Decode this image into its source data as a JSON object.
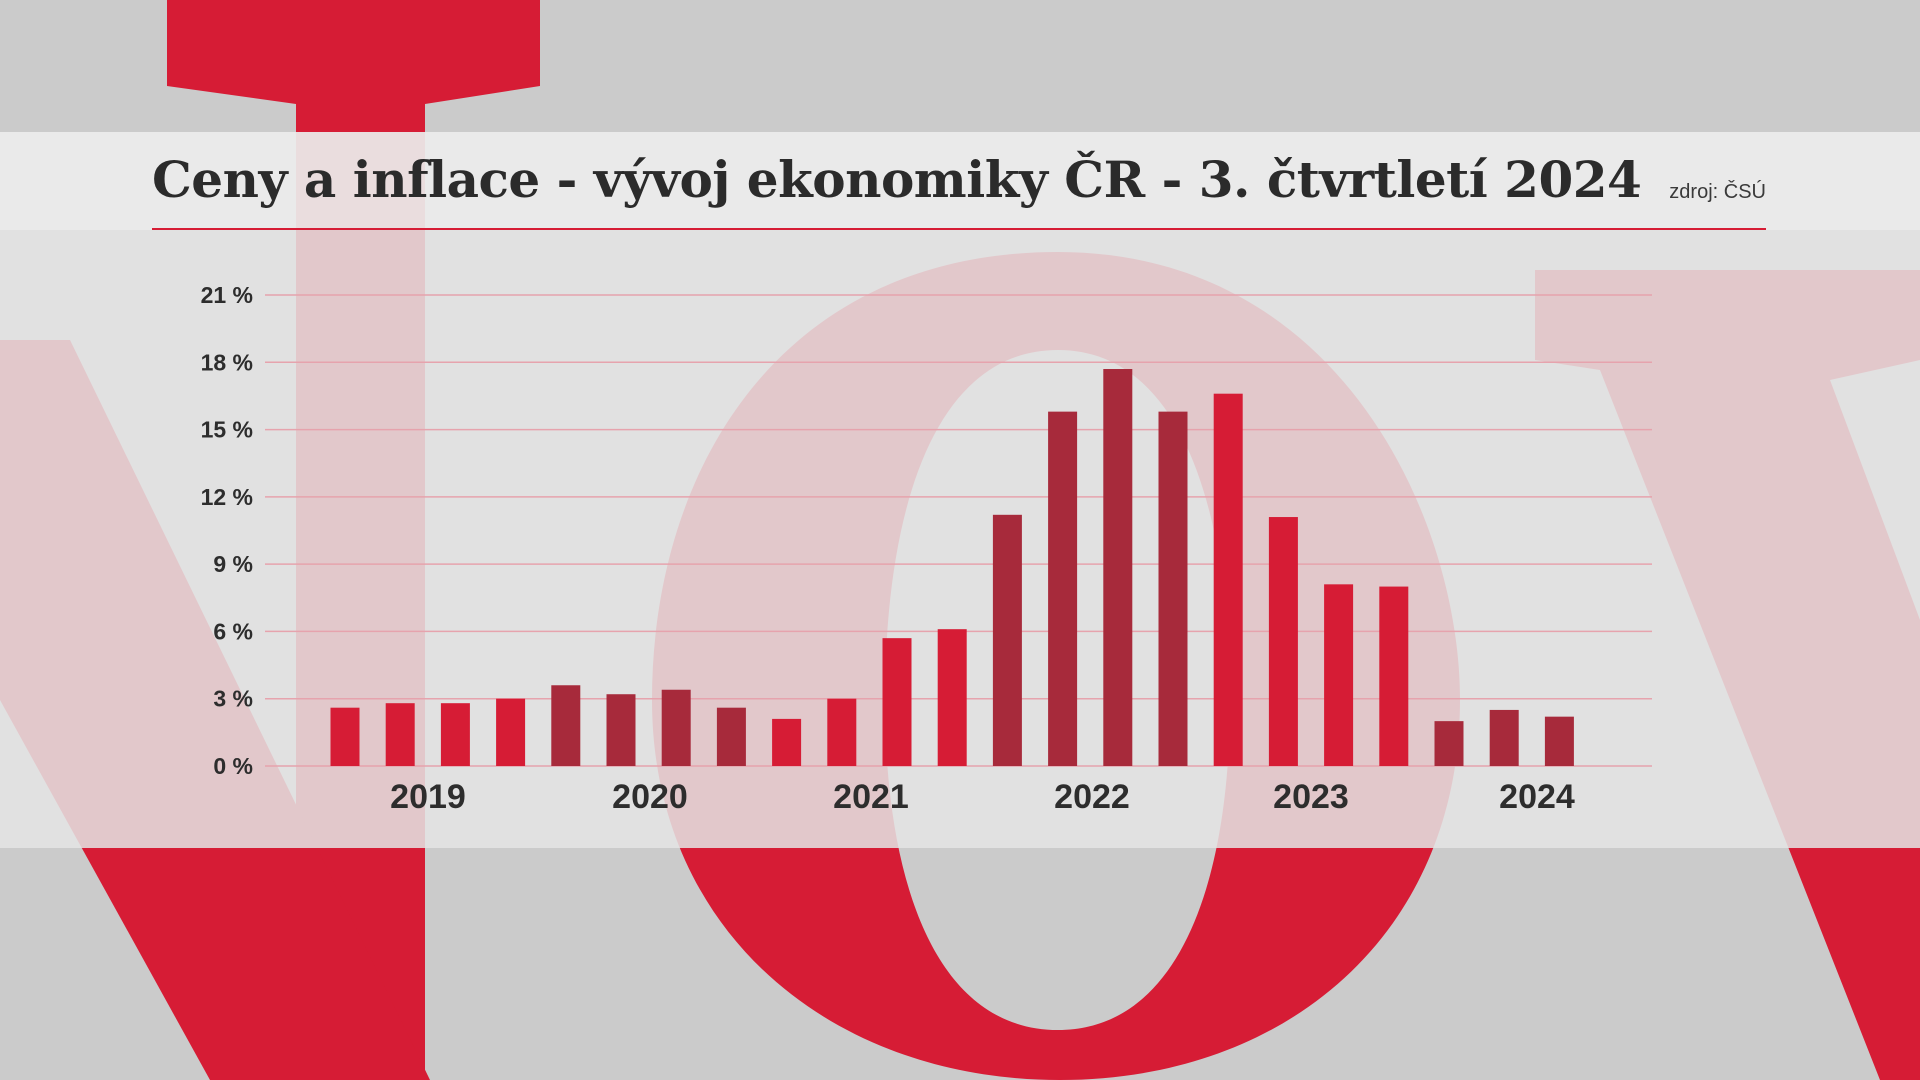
{
  "colors": {
    "accent": "#d61c35",
    "dark_bar": "#a72a3b",
    "light_bar": "#d61c35",
    "gridline": "#e6a3ad",
    "background": "#cbcbcb"
  },
  "header": {
    "title": "Ceny a inflace - vývoj ekonomiky ČR - 3. čtvrtletí 2024",
    "source": "zdroj: ČSÚ"
  },
  "chart_data": {
    "type": "bar",
    "title": "Ceny a inflace - vývoj ekonomiky ČR - 3. čtvrtletí 2024",
    "xlabel": "",
    "ylabel": "",
    "ylim": [
      0,
      21
    ],
    "yticks": [
      0,
      3,
      6,
      9,
      12,
      15,
      18,
      21
    ],
    "ytick_labels": [
      "0 %",
      "3 %",
      "6 %",
      "9 %",
      "12 %",
      "15 %",
      "18 %",
      "21 %"
    ],
    "year_labels": [
      "2019",
      "2020",
      "2021",
      "2022",
      "2023",
      "2024"
    ],
    "grid": true,
    "legend": "none",
    "values": [
      2.6,
      2.8,
      2.8,
      3.0,
      3.6,
      3.2,
      3.4,
      2.6,
      2.1,
      3.0,
      5.7,
      6.1,
      11.2,
      15.8,
      17.7,
      15.8,
      16.6,
      11.1,
      8.1,
      8.0,
      2.0,
      2.5,
      2.2
    ],
    "bar_shade": [
      "light",
      "light",
      "light",
      "light",
      "dark",
      "dark",
      "dark",
      "dark",
      "light",
      "light",
      "light",
      "light",
      "dark",
      "dark",
      "dark",
      "dark",
      "light",
      "light",
      "light",
      "light",
      "dark",
      "dark",
      "dark"
    ]
  }
}
